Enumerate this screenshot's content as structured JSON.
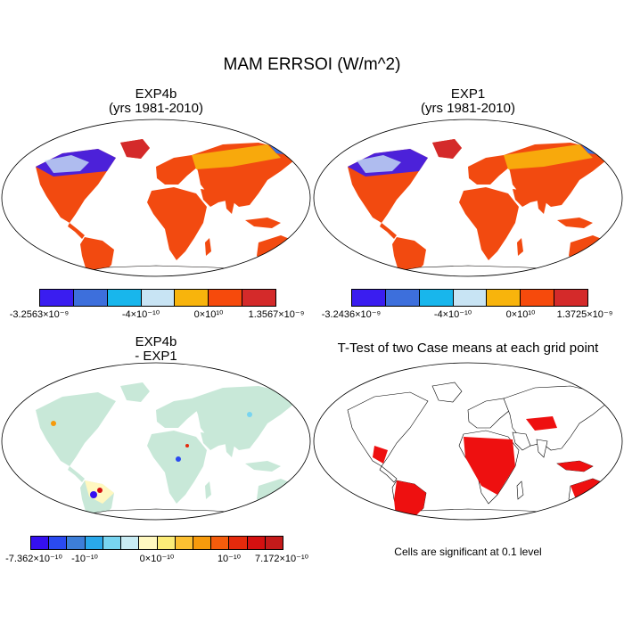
{
  "title": "MAM ERRSOI (W/m^2)",
  "panels": [
    {
      "title_line1": "EXP4b",
      "title_line2": "(yrs 1981-2010)"
    },
    {
      "title_line1": "EXP1",
      "title_line2": "(yrs 1981-2010)"
    },
    {
      "title_line1": "EXP4b",
      "title_line2": "- EXP1"
    },
    {
      "title_line1": "T-Test of two Case means at each grid point",
      "title_line2": ""
    }
  ],
  "colorbars": [
    {
      "colors": [
        "#3a1df0",
        "#3d6fdc",
        "#18b6ec",
        "#c8e4f4",
        "#f8b40c",
        "#f64a0c",
        "#d42a2a"
      ],
      "labels": [
        "-3.2563×10⁻⁹",
        "-4×10⁻¹⁰",
        "0×10¹⁰",
        "1.3567×10⁻⁹"
      ]
    },
    {
      "colors": [
        "#3a1df0",
        "#3d6fdc",
        "#18b6ec",
        "#c8e4f4",
        "#f8b40c",
        "#f64a0c",
        "#d42a2a"
      ],
      "labels": [
        "-3.2436×10⁻⁹",
        "-4×10⁻¹⁰",
        "0×10¹⁰",
        "1.3725×10⁻⁹"
      ]
    },
    {
      "colors": [
        "#3510f0",
        "#2a4af0",
        "#3d7ed8",
        "#2aa8ea",
        "#78d4f0",
        "#c8ecf4",
        "#fff8c0",
        "#fcec78",
        "#fcc032",
        "#f69a0c",
        "#f45c0c",
        "#e42a0c",
        "#d41010",
        "#c41a1a"
      ],
      "labels": [
        "-7.362×10⁻¹⁰",
        "-10⁻¹⁰",
        "0×10⁻¹⁰",
        "10⁻¹⁰",
        "7.172×10⁻¹⁰"
      ]
    }
  ],
  "note": "Cells are significant at 0.1 level"
}
